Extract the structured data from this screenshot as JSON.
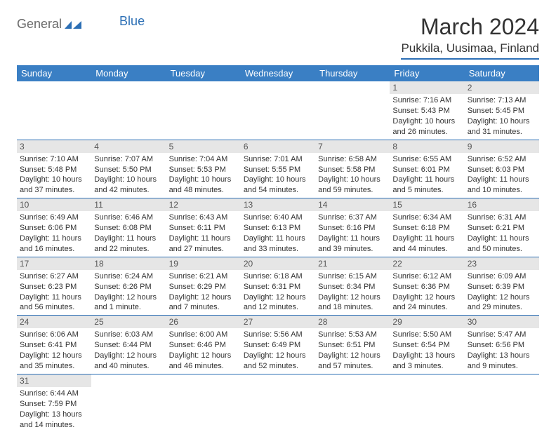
{
  "branding": {
    "logo_text_1": "General",
    "logo_text_2": "Blue",
    "logo_color_gray": "#6a6a6a",
    "logo_color_blue": "#2c6fb5"
  },
  "title": "March 2024",
  "location": "Pukkila, Uusimaa, Finland",
  "theme": {
    "header_bg": "#3a7fc4",
    "header_fg": "#ffffff",
    "daynum_bg": "#e6e6e6",
    "rule_color": "#2c6fb5"
  },
  "day_headers": [
    "Sunday",
    "Monday",
    "Tuesday",
    "Wednesday",
    "Thursday",
    "Friday",
    "Saturday"
  ],
  "weeks": [
    [
      null,
      null,
      null,
      null,
      null,
      {
        "n": "1",
        "sr": "Sunrise: 7:16 AM",
        "ss": "Sunset: 5:43 PM",
        "dl": "Daylight: 10 hours and 26 minutes."
      },
      {
        "n": "2",
        "sr": "Sunrise: 7:13 AM",
        "ss": "Sunset: 5:45 PM",
        "dl": "Daylight: 10 hours and 31 minutes."
      }
    ],
    [
      {
        "n": "3",
        "sr": "Sunrise: 7:10 AM",
        "ss": "Sunset: 5:48 PM",
        "dl": "Daylight: 10 hours and 37 minutes."
      },
      {
        "n": "4",
        "sr": "Sunrise: 7:07 AM",
        "ss": "Sunset: 5:50 PM",
        "dl": "Daylight: 10 hours and 42 minutes."
      },
      {
        "n": "5",
        "sr": "Sunrise: 7:04 AM",
        "ss": "Sunset: 5:53 PM",
        "dl": "Daylight: 10 hours and 48 minutes."
      },
      {
        "n": "6",
        "sr": "Sunrise: 7:01 AM",
        "ss": "Sunset: 5:55 PM",
        "dl": "Daylight: 10 hours and 54 minutes."
      },
      {
        "n": "7",
        "sr": "Sunrise: 6:58 AM",
        "ss": "Sunset: 5:58 PM",
        "dl": "Daylight: 10 hours and 59 minutes."
      },
      {
        "n": "8",
        "sr": "Sunrise: 6:55 AM",
        "ss": "Sunset: 6:01 PM",
        "dl": "Daylight: 11 hours and 5 minutes."
      },
      {
        "n": "9",
        "sr": "Sunrise: 6:52 AM",
        "ss": "Sunset: 6:03 PM",
        "dl": "Daylight: 11 hours and 10 minutes."
      }
    ],
    [
      {
        "n": "10",
        "sr": "Sunrise: 6:49 AM",
        "ss": "Sunset: 6:06 PM",
        "dl": "Daylight: 11 hours and 16 minutes."
      },
      {
        "n": "11",
        "sr": "Sunrise: 6:46 AM",
        "ss": "Sunset: 6:08 PM",
        "dl": "Daylight: 11 hours and 22 minutes."
      },
      {
        "n": "12",
        "sr": "Sunrise: 6:43 AM",
        "ss": "Sunset: 6:11 PM",
        "dl": "Daylight: 11 hours and 27 minutes."
      },
      {
        "n": "13",
        "sr": "Sunrise: 6:40 AM",
        "ss": "Sunset: 6:13 PM",
        "dl": "Daylight: 11 hours and 33 minutes."
      },
      {
        "n": "14",
        "sr": "Sunrise: 6:37 AM",
        "ss": "Sunset: 6:16 PM",
        "dl": "Daylight: 11 hours and 39 minutes."
      },
      {
        "n": "15",
        "sr": "Sunrise: 6:34 AM",
        "ss": "Sunset: 6:18 PM",
        "dl": "Daylight: 11 hours and 44 minutes."
      },
      {
        "n": "16",
        "sr": "Sunrise: 6:31 AM",
        "ss": "Sunset: 6:21 PM",
        "dl": "Daylight: 11 hours and 50 minutes."
      }
    ],
    [
      {
        "n": "17",
        "sr": "Sunrise: 6:27 AM",
        "ss": "Sunset: 6:23 PM",
        "dl": "Daylight: 11 hours and 56 minutes."
      },
      {
        "n": "18",
        "sr": "Sunrise: 6:24 AM",
        "ss": "Sunset: 6:26 PM",
        "dl": "Daylight: 12 hours and 1 minute."
      },
      {
        "n": "19",
        "sr": "Sunrise: 6:21 AM",
        "ss": "Sunset: 6:29 PM",
        "dl": "Daylight: 12 hours and 7 minutes."
      },
      {
        "n": "20",
        "sr": "Sunrise: 6:18 AM",
        "ss": "Sunset: 6:31 PM",
        "dl": "Daylight: 12 hours and 12 minutes."
      },
      {
        "n": "21",
        "sr": "Sunrise: 6:15 AM",
        "ss": "Sunset: 6:34 PM",
        "dl": "Daylight: 12 hours and 18 minutes."
      },
      {
        "n": "22",
        "sr": "Sunrise: 6:12 AM",
        "ss": "Sunset: 6:36 PM",
        "dl": "Daylight: 12 hours and 24 minutes."
      },
      {
        "n": "23",
        "sr": "Sunrise: 6:09 AM",
        "ss": "Sunset: 6:39 PM",
        "dl": "Daylight: 12 hours and 29 minutes."
      }
    ],
    [
      {
        "n": "24",
        "sr": "Sunrise: 6:06 AM",
        "ss": "Sunset: 6:41 PM",
        "dl": "Daylight: 12 hours and 35 minutes."
      },
      {
        "n": "25",
        "sr": "Sunrise: 6:03 AM",
        "ss": "Sunset: 6:44 PM",
        "dl": "Daylight: 12 hours and 40 minutes."
      },
      {
        "n": "26",
        "sr": "Sunrise: 6:00 AM",
        "ss": "Sunset: 6:46 PM",
        "dl": "Daylight: 12 hours and 46 minutes."
      },
      {
        "n": "27",
        "sr": "Sunrise: 5:56 AM",
        "ss": "Sunset: 6:49 PM",
        "dl": "Daylight: 12 hours and 52 minutes."
      },
      {
        "n": "28",
        "sr": "Sunrise: 5:53 AM",
        "ss": "Sunset: 6:51 PM",
        "dl": "Daylight: 12 hours and 57 minutes."
      },
      {
        "n": "29",
        "sr": "Sunrise: 5:50 AM",
        "ss": "Sunset: 6:54 PM",
        "dl": "Daylight: 13 hours and 3 minutes."
      },
      {
        "n": "30",
        "sr": "Sunrise: 5:47 AM",
        "ss": "Sunset: 6:56 PM",
        "dl": "Daylight: 13 hours and 9 minutes."
      }
    ],
    [
      {
        "n": "31",
        "sr": "Sunrise: 6:44 AM",
        "ss": "Sunset: 7:59 PM",
        "dl": "Daylight: 13 hours and 14 minutes."
      },
      null,
      null,
      null,
      null,
      null,
      null
    ]
  ]
}
